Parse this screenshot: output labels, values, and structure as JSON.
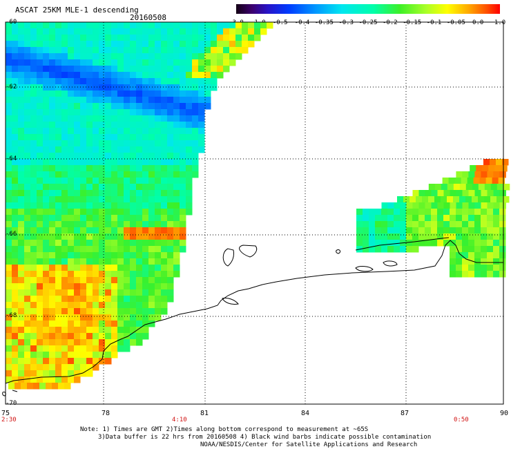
{
  "header": {
    "title": "ASCAT 25KM MLE-1 descending",
    "date": "20160508"
  },
  "colorbar": {
    "ticks": [
      "-3.0",
      "-1.0",
      "-0.5",
      "-0.4",
      "-0.35",
      "-0.3",
      "-0.25",
      "-0.2",
      "-0.15",
      "-0.1",
      "-0.05",
      "0.0",
      "1.0"
    ]
  },
  "axes": {
    "lat_labels": [
      "-60",
      "-62",
      "-64",
      "-66",
      "-68",
      "-70"
    ],
    "lon_labels": [
      "75",
      "78",
      "81",
      "84",
      "87",
      "90"
    ],
    "time_labels": [
      "2:30",
      "4:10",
      "0:50"
    ]
  },
  "notes": {
    "line1": "Note: 1) Times are GMT 2)Times along bottom correspond to measurement at ~65S",
    "line2": "3)Data buffer is 22 hrs from 20160508 4) Black wind barbs indicate possible contamination",
    "line3": "NOAA/NESDIS/Center for Satellite Applications and Research"
  },
  "colors": {
    "grid": "#000000",
    "time_labels": "#d01010",
    "coastline": "#000000"
  }
}
